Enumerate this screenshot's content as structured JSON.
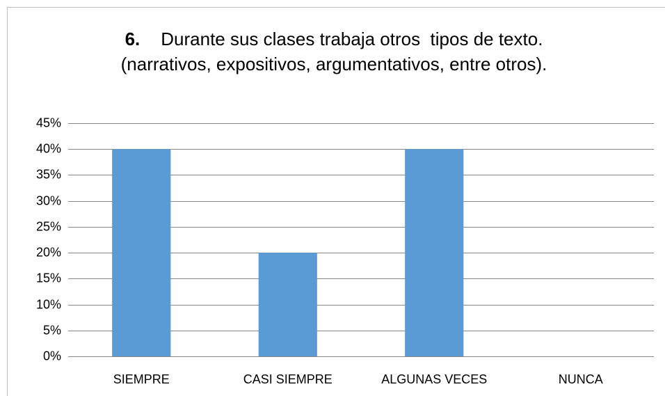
{
  "chart_data": {
    "type": "bar",
    "title_number": "6.",
    "title": "Durante sus clases trabaja otros  tipos de texto. (narrativos, expositivos, argumentativos, entre otros).",
    "categories": [
      "SIEMPRE",
      "CASI SIEMPRE",
      "ALGUNAS VECES",
      "NUNCA"
    ],
    "values": [
      40,
      20,
      40,
      0
    ],
    "color": "#5b9bd5",
    "ylim": [
      0,
      45
    ],
    "yticks": [
      {
        "value": 0,
        "label": "0%"
      },
      {
        "value": 5,
        "label": "5%"
      },
      {
        "value": 10,
        "label": "10%"
      },
      {
        "value": 15,
        "label": "15%"
      },
      {
        "value": 20,
        "label": "20%"
      },
      {
        "value": 25,
        "label": "25%"
      },
      {
        "value": 30,
        "label": "30%"
      },
      {
        "value": 35,
        "label": "35%"
      },
      {
        "value": 40,
        "label": "40%"
      },
      {
        "value": 45,
        "label": "45%"
      }
    ],
    "grid": true
  }
}
